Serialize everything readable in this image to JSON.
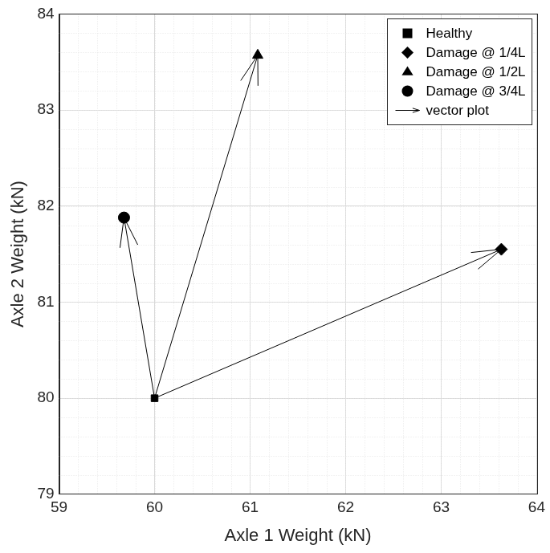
{
  "chart_data": {
    "type": "scatter",
    "x_label": "Axle 1 Weight (kN)",
    "y_label": "Axle 2 Weight (kN)",
    "xlim": [
      59,
      64
    ],
    "xticks": [
      59,
      60,
      61,
      62,
      63,
      64
    ],
    "ylim": [
      79,
      84
    ],
    "yticks": [
      79,
      80,
      81,
      82,
      83,
      84
    ],
    "grid": true,
    "legend": "upper right",
    "series": [
      {
        "name": "Healthy",
        "type": "scatter",
        "color": "#000000",
        "marker": "square",
        "x": [
          60
        ],
        "values": [
          80
        ]
      },
      {
        "name": "Damage @ 1/4L",
        "type": "scatter",
        "color": "#000000",
        "marker": "diamond",
        "x": [
          63.63
        ],
        "values": [
          81.55
        ]
      },
      {
        "name": "Damage @ 1/2L",
        "type": "scatter",
        "color": "#000000",
        "marker": "triangle",
        "x": [
          61.08
        ],
        "values": [
          83.57
        ]
      },
      {
        "name": "Damage @ 3/4L",
        "type": "scatter",
        "color": "#000000",
        "marker": "circle",
        "x": [
          59.68
        ],
        "values": [
          81.88
        ]
      },
      {
        "name": "vector plot",
        "type": "line",
        "color": "#000000",
        "marker": "arrow",
        "line_style": "solid",
        "x": [
          60,
          63.63,
          null,
          60,
          61.08,
          null,
          60,
          59.68
        ],
        "values": [
          80,
          81.55,
          null,
          80,
          83.57,
          null,
          80,
          81.88
        ]
      }
    ]
  }
}
